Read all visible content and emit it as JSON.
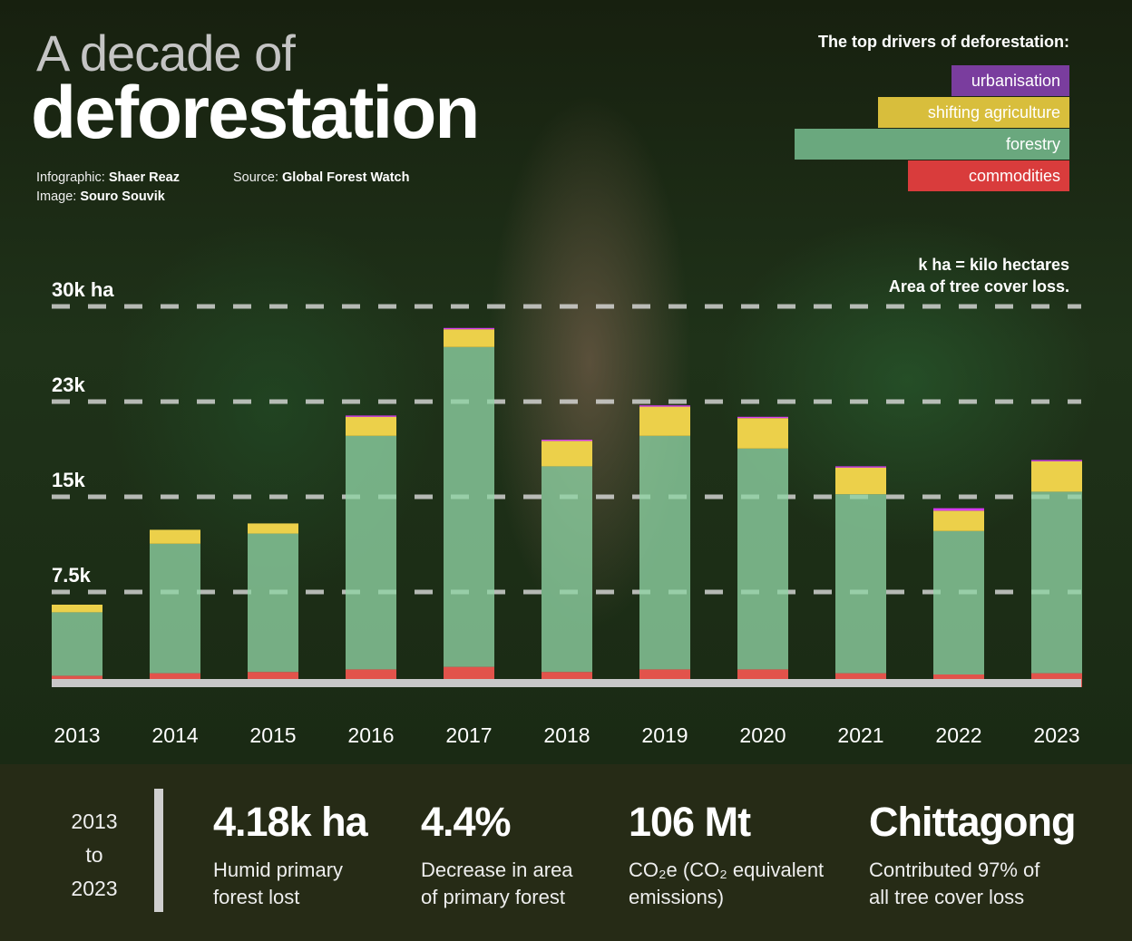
{
  "header": {
    "title_line1": "A decade of",
    "title_line2": "deforestation",
    "credits": {
      "infographic_label": "Infographic:",
      "infographic_name": "Shaer Reaz",
      "image_label": "Image:",
      "image_name": "Souro Souvik",
      "source_label": "Source:",
      "source_name": "Global Forest Watch"
    }
  },
  "legend": {
    "title": "The top drivers of deforestation:",
    "items": [
      {
        "label": "urbanisation",
        "color": "#7a3d9e"
      },
      {
        "label": "shifting agriculture",
        "color": "#d8be3c"
      },
      {
        "label": "forestry",
        "color": "#6aa87e"
      },
      {
        "label": "commodities",
        "color": "#d93c3c"
      }
    ]
  },
  "notes": {
    "line1": "k ha = kilo hectares",
    "line2": "Area of tree cover loss."
  },
  "chart_data": {
    "type": "bar",
    "stacked": true,
    "categories": [
      "2013",
      "2014",
      "2015",
      "2016",
      "2017",
      "2018",
      "2019",
      "2020",
      "2021",
      "2022",
      "2023"
    ],
    "series": [
      {
        "name": "commodities",
        "color": "#e2534b",
        "values": [
          0.9,
          1.1,
          1.2,
          1.4,
          1.6,
          1.2,
          1.4,
          1.4,
          1.1,
          1.0,
          1.1
        ]
      },
      {
        "name": "forestry",
        "color": "#8fd3a4",
        "values": [
          5.0,
          10.2,
          10.9,
          18.4,
          25.2,
          16.2,
          18.4,
          17.4,
          14.1,
          11.3,
          14.3
        ]
      },
      {
        "name": "shifting agriculture",
        "color": "#ecd04a",
        "values": [
          0.6,
          1.1,
          0.8,
          1.5,
          1.4,
          2.0,
          2.3,
          2.4,
          2.1,
          1.6,
          2.4
        ]
      },
      {
        "name": "urbanisation",
        "color": "#d63cf0",
        "values": [
          0,
          0,
          0,
          0.1,
          0.1,
          0.1,
          0.1,
          0.1,
          0.1,
          0.2,
          0.1
        ]
      }
    ],
    "ylim": [
      0,
      30
    ],
    "y_unit": "k ha",
    "y_ticks": [
      {
        "value": 7.5,
        "label": "7.5k"
      },
      {
        "value": 15,
        "label": "15k"
      },
      {
        "value": 22.5,
        "label": "23k"
      },
      {
        "value": 30,
        "label": "30k ha"
      }
    ],
    "grid": "dashed horizontal"
  },
  "summary": {
    "period": {
      "from": "2013",
      "to_word": "to",
      "to": "2023"
    },
    "stats": [
      {
        "value": "4.18k ha",
        "desc1": "Humid primary",
        "desc2": "forest lost"
      },
      {
        "value": "4.4%",
        "desc1": "Decrease in area",
        "desc2": "of primary forest"
      },
      {
        "value": "106 Mt",
        "desc1_html": "CO₂e (CO₂ equivalent",
        "desc2": "emissions)"
      },
      {
        "value": "Chittagong",
        "desc1": "Contributed 97% of",
        "desc2": "all tree cover loss"
      }
    ]
  }
}
